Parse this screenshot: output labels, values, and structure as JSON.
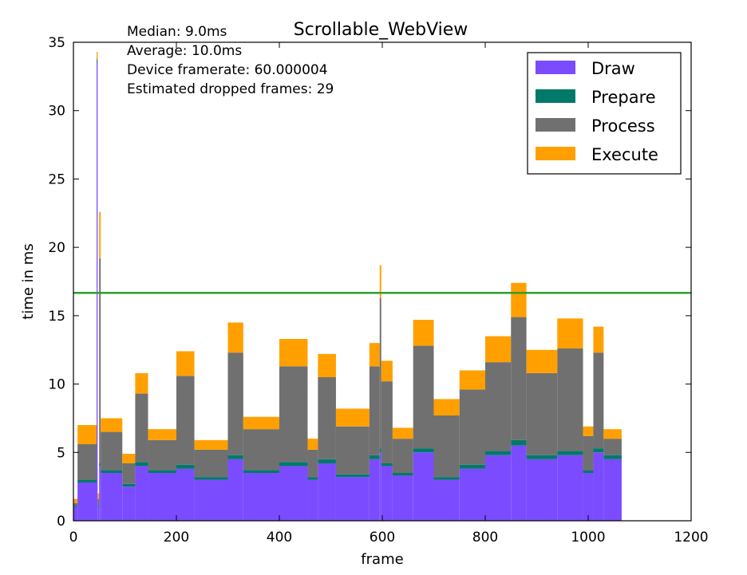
{
  "chart_data": {
    "type": "bar",
    "title": "Scrollable_WebView",
    "xlabel": "frame",
    "ylabel": "time in ms",
    "xlim": [
      0,
      1200
    ],
    "ylim": [
      0,
      35
    ],
    "x_ticks": [
      0,
      200,
      400,
      600,
      800,
      1000,
      1200
    ],
    "y_ticks": [
      0,
      5,
      10,
      15,
      20,
      25,
      30,
      35
    ],
    "grid": false,
    "legend_position": "top-right",
    "stacked": true,
    "frame_count": 1065,
    "stats": [
      "Median: 9.0ms",
      "Average: 10.0ms",
      "Device framerate: 60.000004",
      "Estimated dropped frames: 29"
    ],
    "threshold": {
      "y": 16.67,
      "color": "#2ca02c"
    },
    "series": [
      {
        "name": "Draw",
        "color": "#7b4cff"
      },
      {
        "name": "Prepare",
        "color": "#00796b"
      },
      {
        "name": "Process",
        "color": "#707070"
      },
      {
        "name": "Execute",
        "color": "#ffa000"
      }
    ],
    "segments": [
      {
        "start": 0,
        "end": 8,
        "draw": 1.0,
        "prepare": 0.1,
        "process": 0.2,
        "execute": 0.3
      },
      {
        "start": 8,
        "end": 45,
        "draw": 2.8,
        "prepare": 0.2,
        "process": 2.6,
        "execute": 1.4
      },
      {
        "start": 45,
        "end": 47,
        "draw": 33.5,
        "prepare": 0.1,
        "process": 0.2,
        "execute": 0.5
      },
      {
        "start": 47,
        "end": 50,
        "draw": 1.0,
        "prepare": 0.1,
        "process": 0.5,
        "execute": 0.4
      },
      {
        "start": 50,
        "end": 53,
        "draw": 4.0,
        "prepare": 0.2,
        "process": 15.0,
        "execute": 3.4
      },
      {
        "start": 53,
        "end": 95,
        "draw": 3.5,
        "prepare": 0.2,
        "process": 2.8,
        "execute": 1.0
      },
      {
        "start": 95,
        "end": 120,
        "draw": 2.5,
        "prepare": 0.2,
        "process": 1.5,
        "execute": 0.7
      },
      {
        "start": 120,
        "end": 145,
        "draw": 4.0,
        "prepare": 0.3,
        "process": 5.0,
        "execute": 1.5
      },
      {
        "start": 145,
        "end": 200,
        "draw": 3.5,
        "prepare": 0.2,
        "process": 2.2,
        "execute": 0.8
      },
      {
        "start": 200,
        "end": 235,
        "draw": 3.8,
        "prepare": 0.3,
        "process": 6.5,
        "execute": 1.8
      },
      {
        "start": 235,
        "end": 300,
        "draw": 3.0,
        "prepare": 0.2,
        "process": 2.0,
        "execute": 0.7
      },
      {
        "start": 300,
        "end": 330,
        "draw": 4.5,
        "prepare": 0.3,
        "process": 7.5,
        "execute": 2.2
      },
      {
        "start": 330,
        "end": 400,
        "draw": 3.5,
        "prepare": 0.2,
        "process": 3.0,
        "execute": 0.9
      },
      {
        "start": 400,
        "end": 455,
        "draw": 4.0,
        "prepare": 0.3,
        "process": 7.0,
        "execute": 2.0
      },
      {
        "start": 455,
        "end": 475,
        "draw": 3.0,
        "prepare": 0.2,
        "process": 2.0,
        "execute": 0.8
      },
      {
        "start": 475,
        "end": 510,
        "draw": 4.2,
        "prepare": 0.3,
        "process": 6.0,
        "execute": 1.7
      },
      {
        "start": 510,
        "end": 575,
        "draw": 3.2,
        "prepare": 0.2,
        "process": 3.5,
        "execute": 1.3
      },
      {
        "start": 575,
        "end": 595,
        "draw": 4.5,
        "prepare": 0.3,
        "process": 6.5,
        "execute": 1.7
      },
      {
        "start": 595,
        "end": 598,
        "draw": 5.0,
        "prepare": 0.3,
        "process": 11.0,
        "execute": 2.4
      },
      {
        "start": 598,
        "end": 620,
        "draw": 4.0,
        "prepare": 0.2,
        "process": 6.0,
        "execute": 1.5
      },
      {
        "start": 620,
        "end": 660,
        "draw": 3.3,
        "prepare": 0.2,
        "process": 2.5,
        "execute": 0.8
      },
      {
        "start": 660,
        "end": 700,
        "draw": 5.0,
        "prepare": 0.3,
        "process": 7.5,
        "execute": 1.9
      },
      {
        "start": 700,
        "end": 750,
        "draw": 3.0,
        "prepare": 0.2,
        "process": 4.5,
        "execute": 1.2
      },
      {
        "start": 750,
        "end": 800,
        "draw": 3.8,
        "prepare": 0.3,
        "process": 5.5,
        "execute": 1.4
      },
      {
        "start": 800,
        "end": 850,
        "draw": 4.8,
        "prepare": 0.3,
        "process": 6.5,
        "execute": 1.9
      },
      {
        "start": 850,
        "end": 880,
        "draw": 5.5,
        "prepare": 0.4,
        "process": 9.0,
        "execute": 2.5
      },
      {
        "start": 880,
        "end": 940,
        "draw": 4.5,
        "prepare": 0.3,
        "process": 6.0,
        "execute": 1.7
      },
      {
        "start": 940,
        "end": 990,
        "draw": 4.8,
        "prepare": 0.3,
        "process": 7.5,
        "execute": 2.2
      },
      {
        "start": 990,
        "end": 1010,
        "draw": 3.5,
        "prepare": 0.2,
        "process": 2.5,
        "execute": 0.7
      },
      {
        "start": 1010,
        "end": 1030,
        "draw": 5.0,
        "prepare": 0.3,
        "process": 7.0,
        "execute": 1.9
      },
      {
        "start": 1030,
        "end": 1065,
        "draw": 4.5,
        "prepare": 0.3,
        "process": 1.2,
        "execute": 0.7
      }
    ]
  }
}
